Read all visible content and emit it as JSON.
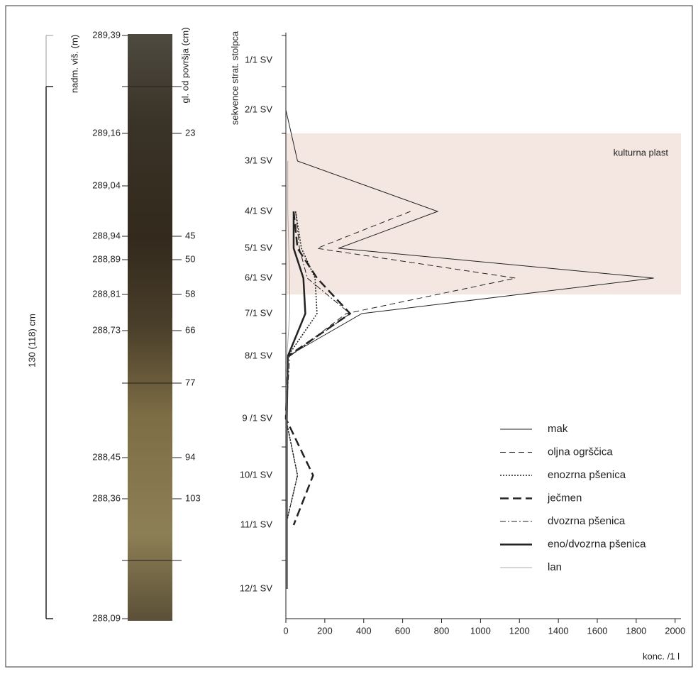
{
  "core": {
    "thickness_label": "130 (118) cm",
    "elevation_label": "nadm. viš. (m)",
    "depth_label": "gl. od površja (cm)",
    "elevations": [
      "289,39",
      "289,16",
      "289,04",
      "288,94",
      "288,89",
      "288,81",
      "288,73",
      "288,45",
      "288,36",
      "288,09"
    ],
    "depths": [
      "23",
      "45",
      "50",
      "58",
      "66",
      "77",
      "94",
      "103"
    ]
  },
  "chart_data": {
    "type": "line",
    "y_axis_label": "sekvence strat. stolpca",
    "x_label": "konc. /1 l",
    "annotation": "kulturna plast",
    "categories": [
      "1/1 SV",
      "2/1 SV",
      "3/1 SV",
      "4/1 SV",
      "5/1 SV",
      "6/1 SV",
      "7/1 SV",
      "8/1 SV",
      "9 /1 SV",
      "10/1 SV",
      "11/1 SV",
      "12/1 SV"
    ],
    "xlim": [
      0,
      2030
    ],
    "xticks": [
      0,
      200,
      400,
      600,
      800,
      1000,
      1200,
      1400,
      1600,
      1800,
      2000
    ],
    "legend": "lower right",
    "series": [
      {
        "name": "mak",
        "color": "#222222",
        "dash": "none",
        "width": 1,
        "values": [
          null,
          0,
          60,
          780,
          270,
          1890,
          390,
          10,
          null,
          null,
          null,
          null
        ]
      },
      {
        "name": "oljna ogrščica",
        "color": "#222222",
        "dash": "8,5",
        "width": 1,
        "values": [
          null,
          null,
          null,
          640,
          160,
          1180,
          310,
          20,
          null,
          null,
          null,
          null
        ]
      },
      {
        "name": "enozrna pšenica",
        "color": "#222222",
        "dash": "2,2",
        "width": 1.6,
        "values": [
          null,
          null,
          null,
          50,
          80,
          150,
          160,
          10,
          0,
          60,
          0,
          null
        ]
      },
      {
        "name": "ječmen",
        "color": "#222222",
        "dash": "12,6",
        "width": 2.5,
        "values": [
          null,
          null,
          null,
          40,
          60,
          160,
          330,
          10,
          0,
          140,
          40,
          null
        ]
      },
      {
        "name": "dvozrna pšenica",
        "color": "#222222",
        "dash": "8,3,2,3",
        "width": 1,
        "values": [
          null,
          null,
          null,
          50,
          70,
          110,
          330,
          20,
          0,
          60,
          0,
          null
        ]
      },
      {
        "name": "eno/dvozrna pšenica",
        "color": "#222222",
        "dash": "none",
        "width": 2.5,
        "values": [
          null,
          null,
          null,
          40,
          40,
          90,
          100,
          10,
          5,
          5,
          5,
          5
        ]
      },
      {
        "name": "lan",
        "color": "#aaaaaa",
        "dash": "none",
        "width": 1,
        "values": [
          null,
          null,
          10,
          10,
          15,
          20,
          20,
          5,
          5,
          5,
          5,
          5
        ]
      }
    ]
  }
}
